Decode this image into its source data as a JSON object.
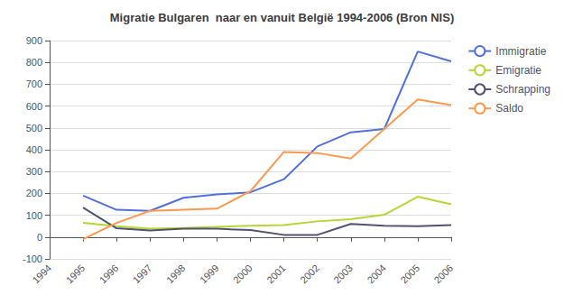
{
  "chart_data": {
    "type": "line",
    "title": "Migratie Bulgaren  naar en vanuit België 1994-2006 (Bron NIS)",
    "x": [
      1995,
      1996,
      1997,
      1998,
      1999,
      2000,
      2001,
      2002,
      2003,
      2004,
      2005,
      2006
    ],
    "series": [
      {
        "name": "Immigratie",
        "values": [
          190,
          125,
          120,
          180,
          195,
          205,
          265,
          415,
          480,
          495,
          850,
          805
        ]
      },
      {
        "name": "Emigratie",
        "values": [
          65,
          50,
          38,
          42,
          47,
          52,
          55,
          72,
          82,
          102,
          185,
          150
        ]
      },
      {
        "name": "Schrapping",
        "values": [
          135,
          40,
          30,
          38,
          38,
          32,
          10,
          10,
          60,
          52,
          50,
          55
        ]
      },
      {
        "name": "Saldo",
        "values": [
          -10,
          65,
          120,
          125,
          130,
          210,
          390,
          385,
          360,
          495,
          630,
          605
        ]
      }
    ],
    "xlim": [
      1994,
      2006
    ],
    "xticks": [
      1994,
      1995,
      1996,
      1997,
      1998,
      1999,
      2000,
      2001,
      2002,
      2003,
      2004,
      2005,
      2006
    ],
    "ylim": [
      -100,
      900
    ],
    "yticks": [
      -100,
      0,
      100,
      200,
      300,
      400,
      500,
      600,
      700,
      800,
      900
    ],
    "grid": true,
    "legend": "upper right"
  }
}
